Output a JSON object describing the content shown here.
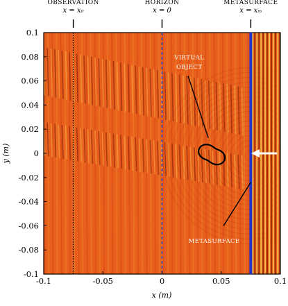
{
  "chart_data": {
    "type": "heatmap",
    "xlabel": "x (m)",
    "ylabel": "y (m)",
    "xlim": [
      -0.1,
      0.1
    ],
    "ylim": [
      -0.1,
      0.1
    ],
    "xticks": [
      -0.1,
      -0.05,
      0,
      0.05,
      0.1
    ],
    "yticks": [
      0.1,
      0.08,
      0.06,
      0.04,
      0.02,
      0,
      -0.02,
      -0.04,
      -0.06,
      -0.08,
      -0.1
    ],
    "xtick_labels": [
      "-0.1",
      "-0.05",
      "0",
      "0.05",
      "0.1"
    ],
    "ytick_labels": [
      "0.1",
      "0.08",
      "0.06",
      "0.04",
      "0.02",
      "0",
      "-0.02",
      "-0.04",
      "-0.06",
      "-0.08",
      "-0.1"
    ],
    "colors": {
      "field_base": "#e8601c",
      "field_light": "#f4a13a",
      "field_dark": "#b3270c",
      "metasurface": "#2233cc",
      "horizon": "#3344cc"
    },
    "lines": {
      "observation": {
        "x": -0.075,
        "style": "dotted",
        "title": "Observation",
        "subtitle": "x = x₀"
      },
      "horizon": {
        "x": 0,
        "style": "dashed",
        "title": "Horizon",
        "subtitle": "x = 0"
      },
      "metasurface": {
        "x": 0.075,
        "style": "solid",
        "title": "Metasurface",
        "subtitle": "x = xₘ"
      }
    },
    "annotations": {
      "virtual_object": [
        "Virtual",
        "Object"
      ],
      "metasurface_label": "Metasurface",
      "virtual_object_center": [
        0.042,
        -0.001
      ],
      "incident_arrow_y": 0
    }
  }
}
